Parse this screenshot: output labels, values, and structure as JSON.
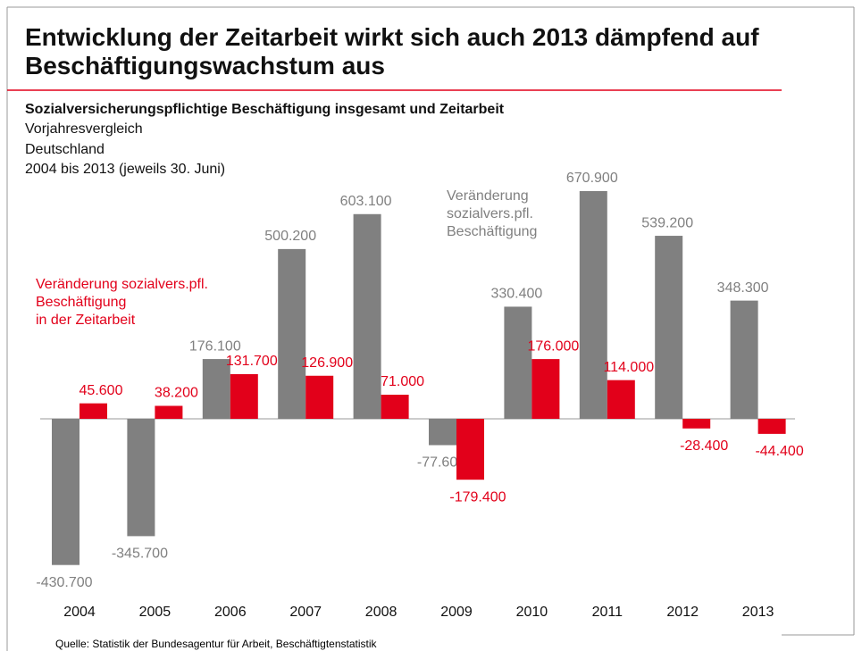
{
  "title": "Entwicklung der Zeitarbeit wirkt sich auch 2013 dämpfend auf Beschäftigungswachstum aus",
  "chart_data": {
    "type": "bar",
    "title": "Sozialversicherungspflichtige Beschäftigung insgesamt und Zeitarbeit",
    "subtitle": [
      "Vorjahresvergleich",
      "Deutschland",
      "2004 bis 2013 (jeweils 30. Juni)"
    ],
    "categories": [
      "2004",
      "2005",
      "2006",
      "2007",
      "2008",
      "2009",
      "2010",
      "2011",
      "2012",
      "2013"
    ],
    "series": [
      {
        "name": "Veränderung\nsozialvers.pfl.\nBeschäftigung",
        "color": "#808080",
        "values": [
          -430700,
          -345700,
          176100,
          500200,
          603100,
          -77600,
          330400,
          670900,
          539200,
          348300
        ],
        "value_labels": [
          "-430.700",
          "-345.700",
          "176.100",
          "500.200",
          "603.100",
          "-77.600",
          "330.400",
          "670.900",
          "539.200",
          "348.300"
        ]
      },
      {
        "name": "Veränderung sozialvers.pfl.\nBeschäftigung\nin der Zeitarbeit",
        "color": "#e2001a",
        "values": [
          45600,
          38200,
          131700,
          126900,
          71000,
          -179400,
          176000,
          114000,
          -28400,
          -44400
        ],
        "value_labels": [
          "45.600",
          "38.200",
          "131.700",
          "126.900",
          "71.000",
          "-179.400",
          "176.000",
          "114.000",
          "-28.400",
          "-44.400"
        ]
      }
    ],
    "source": "Quelle: Statistik der Bundesagentur für Arbeit, Beschäftigtenstatistik"
  }
}
